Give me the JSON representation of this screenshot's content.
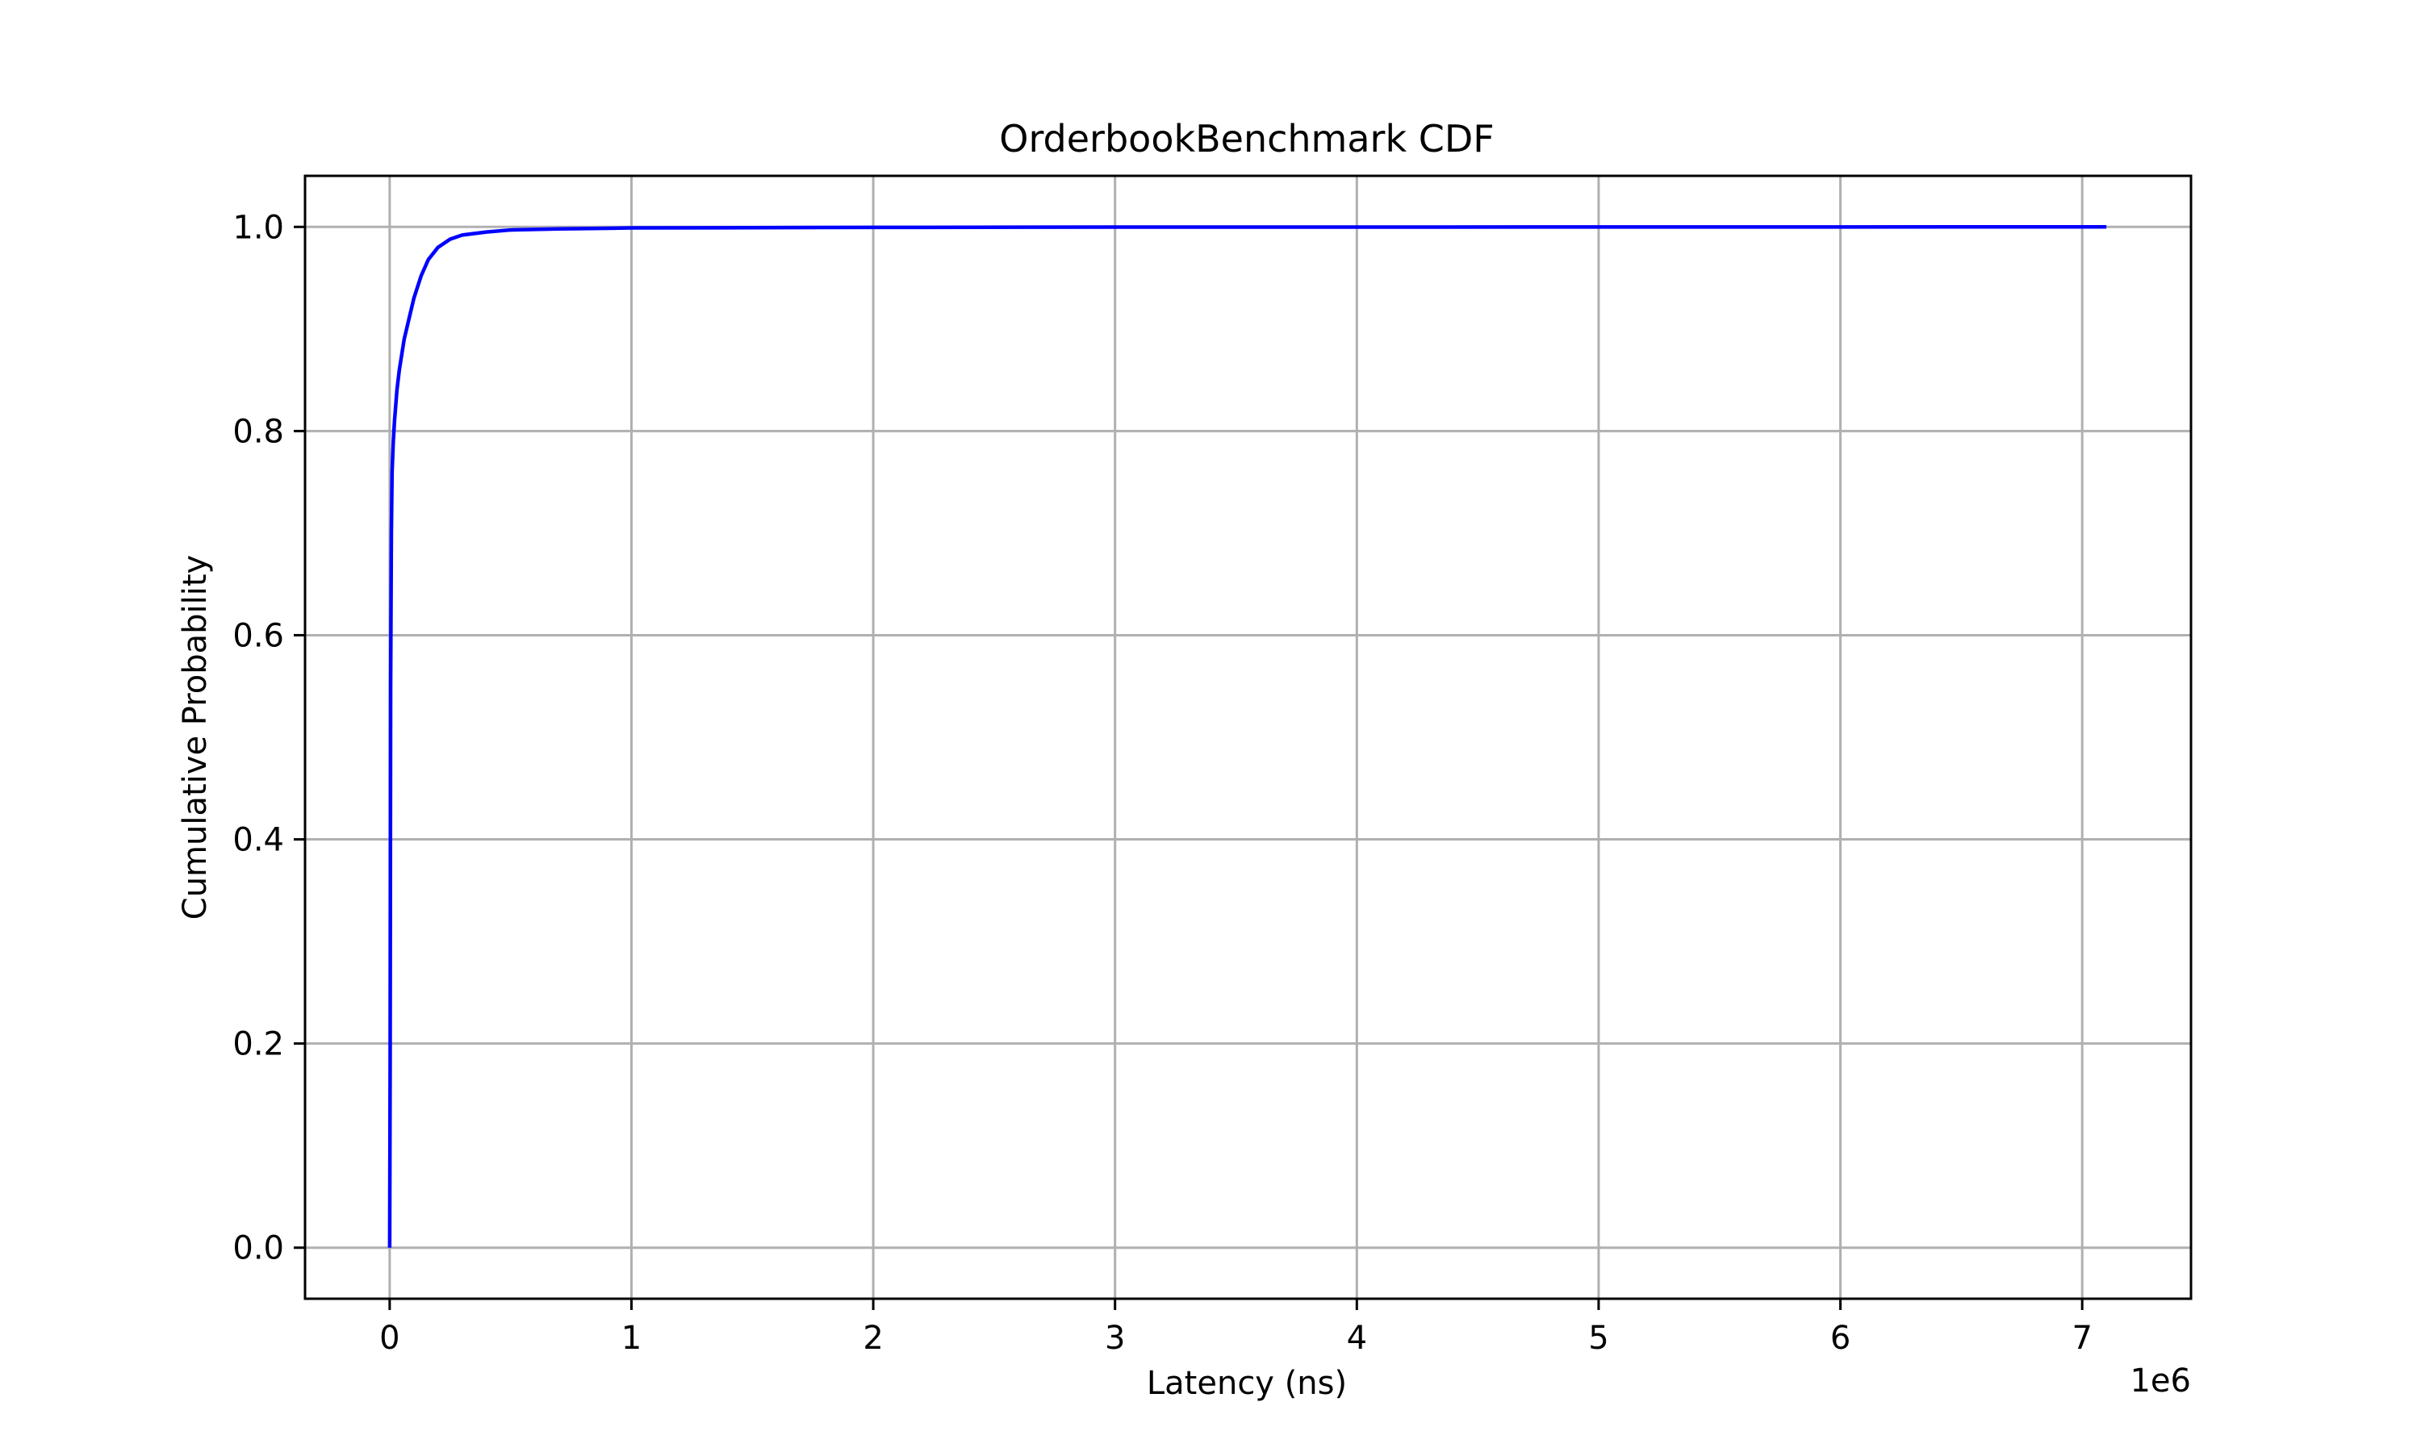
{
  "chart_data": {
    "type": "line",
    "title": "OrderbookBenchmark CDF",
    "xlabel": "Latency (ns)",
    "ylabel": "Cumulative Probability",
    "x_offset_label": "1e6",
    "xlim": [
      -350000,
      7450000
    ],
    "ylim": [
      -0.05,
      1.05
    ],
    "x_ticks": [
      0,
      1000000,
      2000000,
      3000000,
      4000000,
      5000000,
      6000000,
      7000000
    ],
    "x_tick_labels": [
      "0",
      "1",
      "2",
      "3",
      "4",
      "5",
      "6",
      "7"
    ],
    "y_ticks": [
      0.0,
      0.2,
      0.4,
      0.6,
      0.8,
      1.0
    ],
    "y_tick_labels": [
      "0.0",
      "0.2",
      "0.4",
      "0.6",
      "0.8",
      "1.0"
    ],
    "grid": true,
    "series": [
      {
        "color": "#0000ff",
        "x": [
          0,
          2000,
          4000,
          7000,
          10000,
          15000,
          20000,
          30000,
          40000,
          50000,
          60000,
          80000,
          100000,
          130000,
          160000,
          200000,
          250000,
          300000,
          400000,
          500000,
          700000,
          1000000,
          2000000,
          3000000,
          5000000,
          7100000
        ],
        "y": [
          0.0,
          0.18,
          0.55,
          0.7,
          0.76,
          0.79,
          0.81,
          0.84,
          0.86,
          0.875,
          0.89,
          0.91,
          0.93,
          0.952,
          0.968,
          0.98,
          0.988,
          0.992,
          0.995,
          0.997,
          0.998,
          0.999,
          0.9995,
          0.9998,
          0.9999,
          1.0
        ]
      }
    ]
  }
}
